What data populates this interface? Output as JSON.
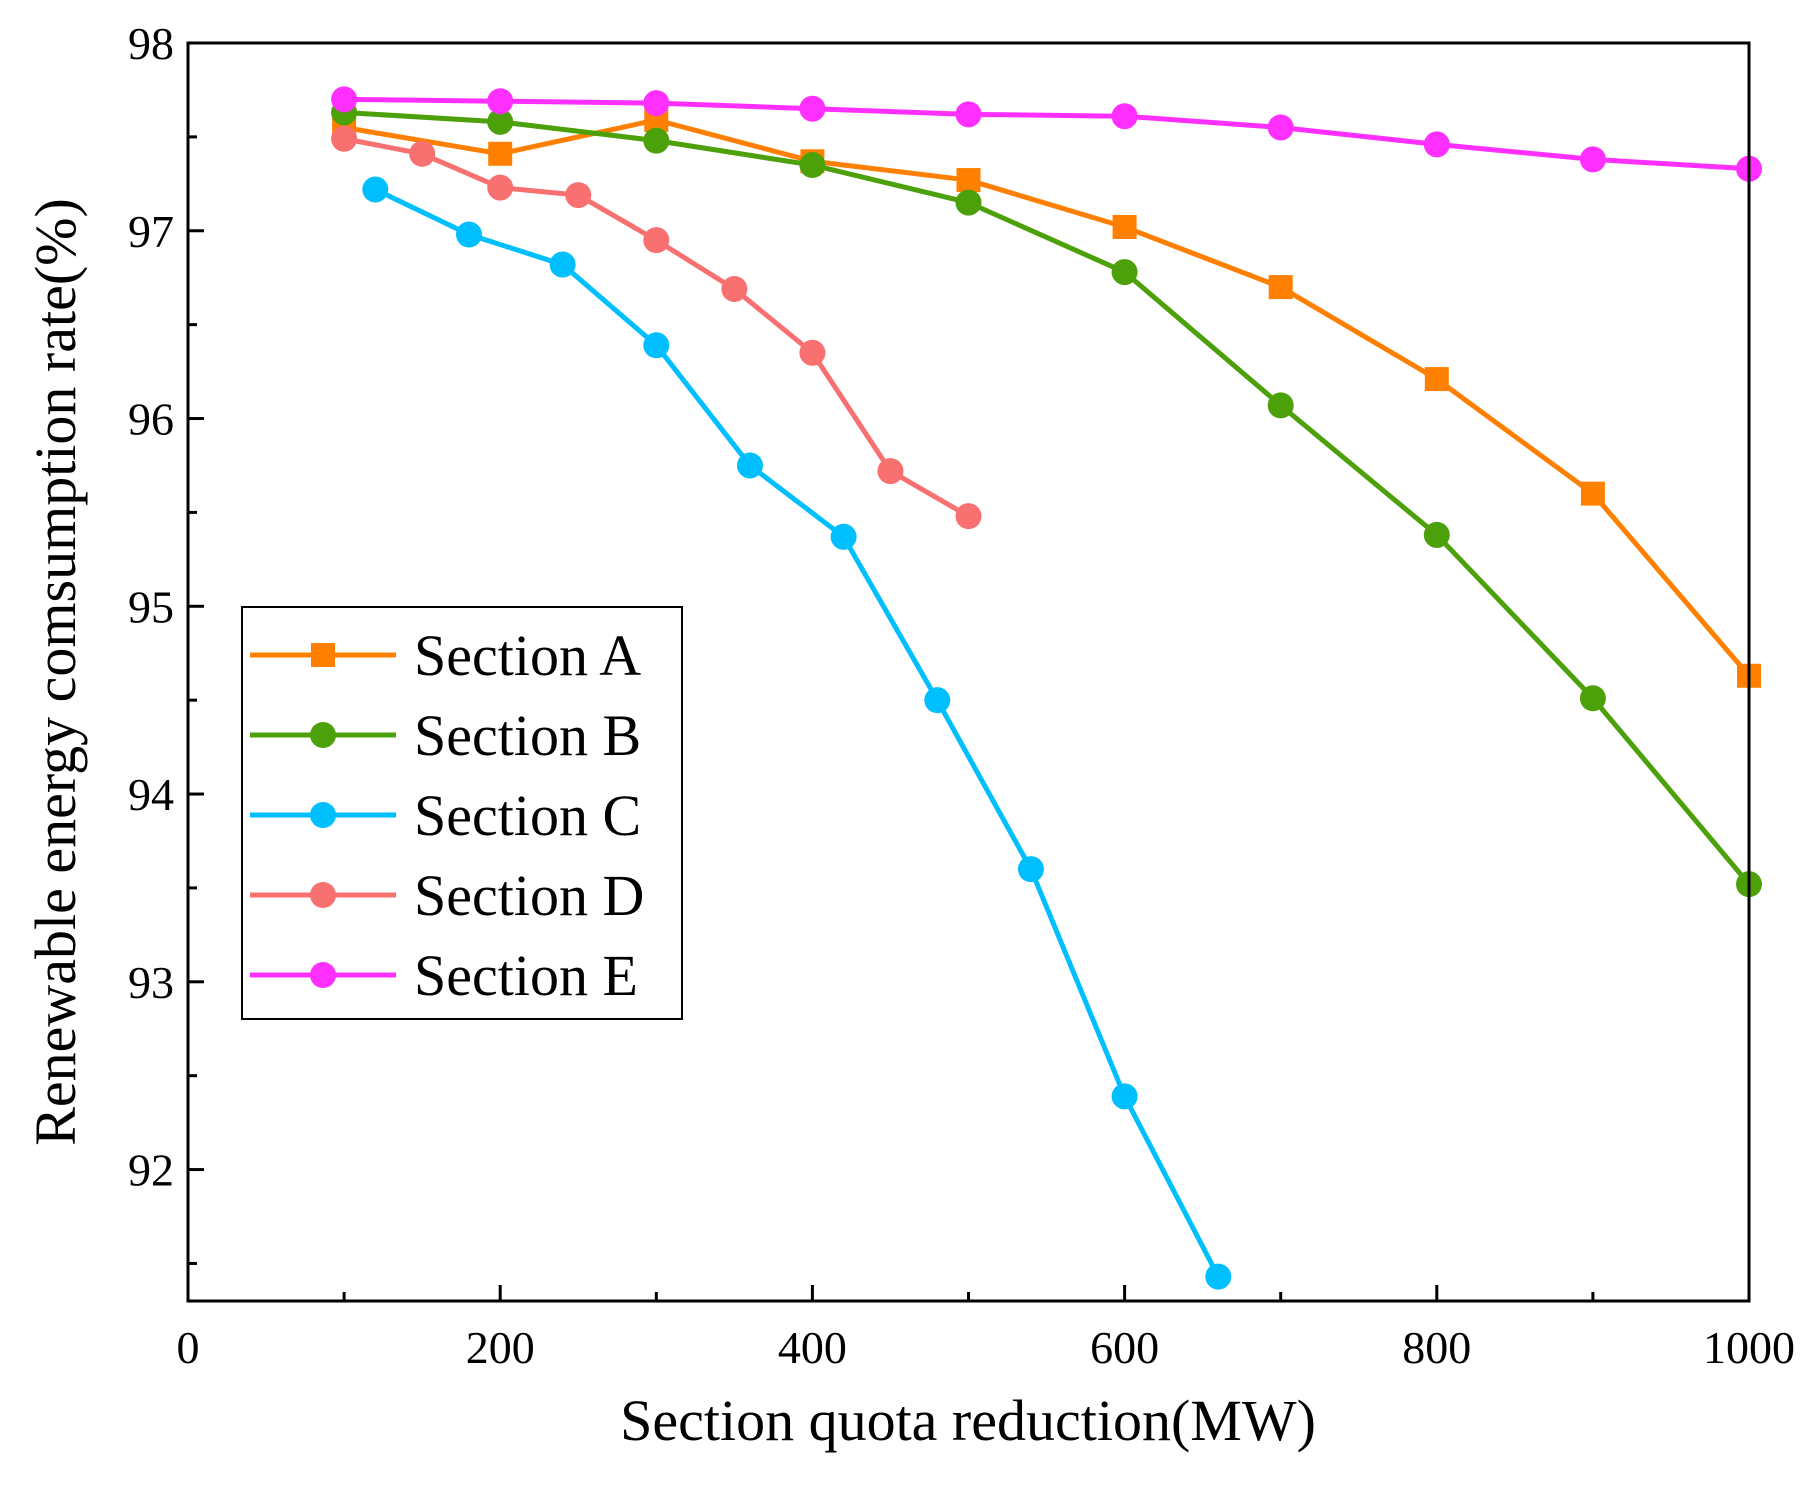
{
  "chart_data": {
    "type": "line",
    "title": "",
    "xlabel": "Section quota reduction(MW)",
    "ylabel": "Renewable energy comsumption rate(%)",
    "xlim": [
      0,
      1000
    ],
    "ylim": [
      91.3,
      98
    ],
    "xticks": [
      0,
      200,
      400,
      600,
      800,
      1000
    ],
    "yticks": [
      92,
      93,
      94,
      95,
      96,
      97,
      98
    ],
    "grid": false,
    "legend_position": "center-left",
    "series": [
      {
        "name": "Section A",
        "color": "#FF8000",
        "marker": "square",
        "x": [
          100,
          200,
          300,
          400,
          500,
          600,
          700,
          800,
          900,
          1000
        ],
        "y": [
          97.55,
          97.41,
          97.59,
          97.37,
          97.27,
          97.02,
          96.7,
          96.21,
          95.6,
          94.63
        ]
      },
      {
        "name": "Section B",
        "color": "#4CA00A",
        "marker": "circle",
        "x": [
          100,
          200,
          300,
          400,
          500,
          600,
          700,
          800,
          900,
          1000
        ],
        "y": [
          97.63,
          97.58,
          97.48,
          97.35,
          97.15,
          96.78,
          96.07,
          95.38,
          94.51,
          93.52
        ]
      },
      {
        "name": "Section C",
        "color": "#00BFFF",
        "marker": "circle",
        "x": [
          120,
          180,
          240,
          300,
          360,
          420,
          480,
          540,
          600,
          660
        ],
        "y": [
          97.22,
          96.98,
          96.82,
          96.39,
          95.75,
          95.37,
          94.5,
          93.6,
          92.39,
          91.43
        ]
      },
      {
        "name": "Section D",
        "color": "#F87070",
        "marker": "circle",
        "x": [
          100,
          150,
          200,
          250,
          300,
          350,
          400,
          450,
          500
        ],
        "y": [
          97.49,
          97.41,
          97.23,
          97.19,
          96.95,
          96.69,
          96.35,
          95.72,
          95.48
        ]
      },
      {
        "name": "Section E",
        "color": "#FF30FF",
        "marker": "circle",
        "x": [
          100,
          200,
          300,
          400,
          500,
          600,
          700,
          800,
          900,
          1000
        ],
        "y": [
          97.7,
          97.69,
          97.68,
          97.65,
          97.62,
          97.61,
          97.55,
          97.46,
          97.38,
          97.33
        ]
      }
    ]
  }
}
